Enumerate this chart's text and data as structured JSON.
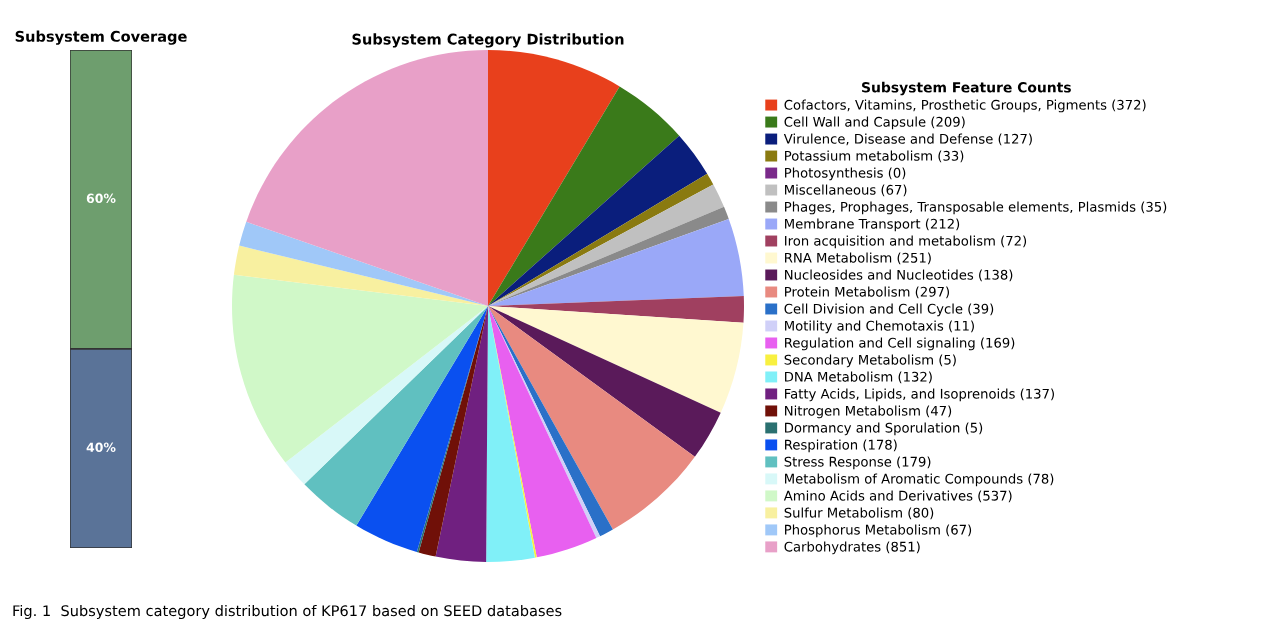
{
  "chart_data": [
    {
      "type": "bar",
      "title": "Subsystem Coverage",
      "stacked": true,
      "ylim": [
        0,
        100
      ],
      "tick_labels": false,
      "categories": [
        null
      ],
      "series": [
        {
          "color": "#5a7398",
          "values": [
            40
          ],
          "value_labels": [
            "40%"
          ]
        },
        {
          "color": "#6e9e6e",
          "values": [
            60
          ],
          "value_labels": [
            "60%"
          ]
        }
      ]
    },
    {
      "type": "pie",
      "title": "Subsystem Category Distribution",
      "legend_title": "Subsystem Feature Counts",
      "legend": "right",
      "annotations": [
        "Fig. 1  Subsystem category distribution of KP617 based on SEED databases"
      ],
      "categories": [
        "Cofactors, Vitamins, Prosthetic Groups, Pigments (372)",
        "Cell Wall and Capsule (209)",
        "Virulence, Disease and Defense (127)",
        "Potassium metabolism (33)",
        "Photosynthesis (0)",
        "Miscellaneous (67)",
        "Phages, Prophages, Transposable elements, Plasmids (35)",
        "Membrane Transport (212)",
        "Iron acquisition and metabolism (72)",
        "RNA Metabolism (251)",
        "Nucleosides and Nucleotides (138)",
        "Protein Metabolism (297)",
        "Cell Division and Cell Cycle (39)",
        "Motility and Chemotaxis (11)",
        "Regulation and Cell signaling (169)",
        "Secondary Metabolism (5)",
        "DNA Metabolism (132)",
        "Fatty Acids, Lipids, and Isoprenoids (137)",
        "Nitrogen Metabolism (47)",
        "Dormancy and Sporulation (5)",
        "Respiration (178)",
        "Stress Response (179)",
        "Metabolism of Aromatic Compounds (78)",
        "Amino Acids and Derivatives (537)",
        "Sulfur Metabolism (80)",
        "Phosphorus Metabolism (67)",
        "Carbohydrates (851)"
      ],
      "values": [
        372,
        209,
        127,
        33,
        0,
        67,
        35,
        212,
        72,
        251,
        138,
        297,
        39,
        11,
        169,
        5,
        132,
        137,
        47,
        5,
        178,
        179,
        78,
        537,
        80,
        67,
        851
      ],
      "colors": [
        "#e8401c",
        "#3a7a1a",
        "#0a1e7c",
        "#8a7a10",
        "#7a2a8a",
        "#c0c0c0",
        "#8a8a8a",
        "#9aa8f8",
        "#a04060",
        "#fff8d0",
        "#5a1a5a",
        "#e88a80",
        "#2a70c8",
        "#d0d0f8",
        "#e860f0",
        "#f8f040",
        "#80f0f8",
        "#702080",
        "#701008",
        "#2a7070",
        "#0a50f0",
        "#60c0c0",
        "#d8f8f8",
        "#d0f8c8",
        "#f8f0a0",
        "#a0c8f8",
        "#e8a0c8"
      ]
    }
  ]
}
